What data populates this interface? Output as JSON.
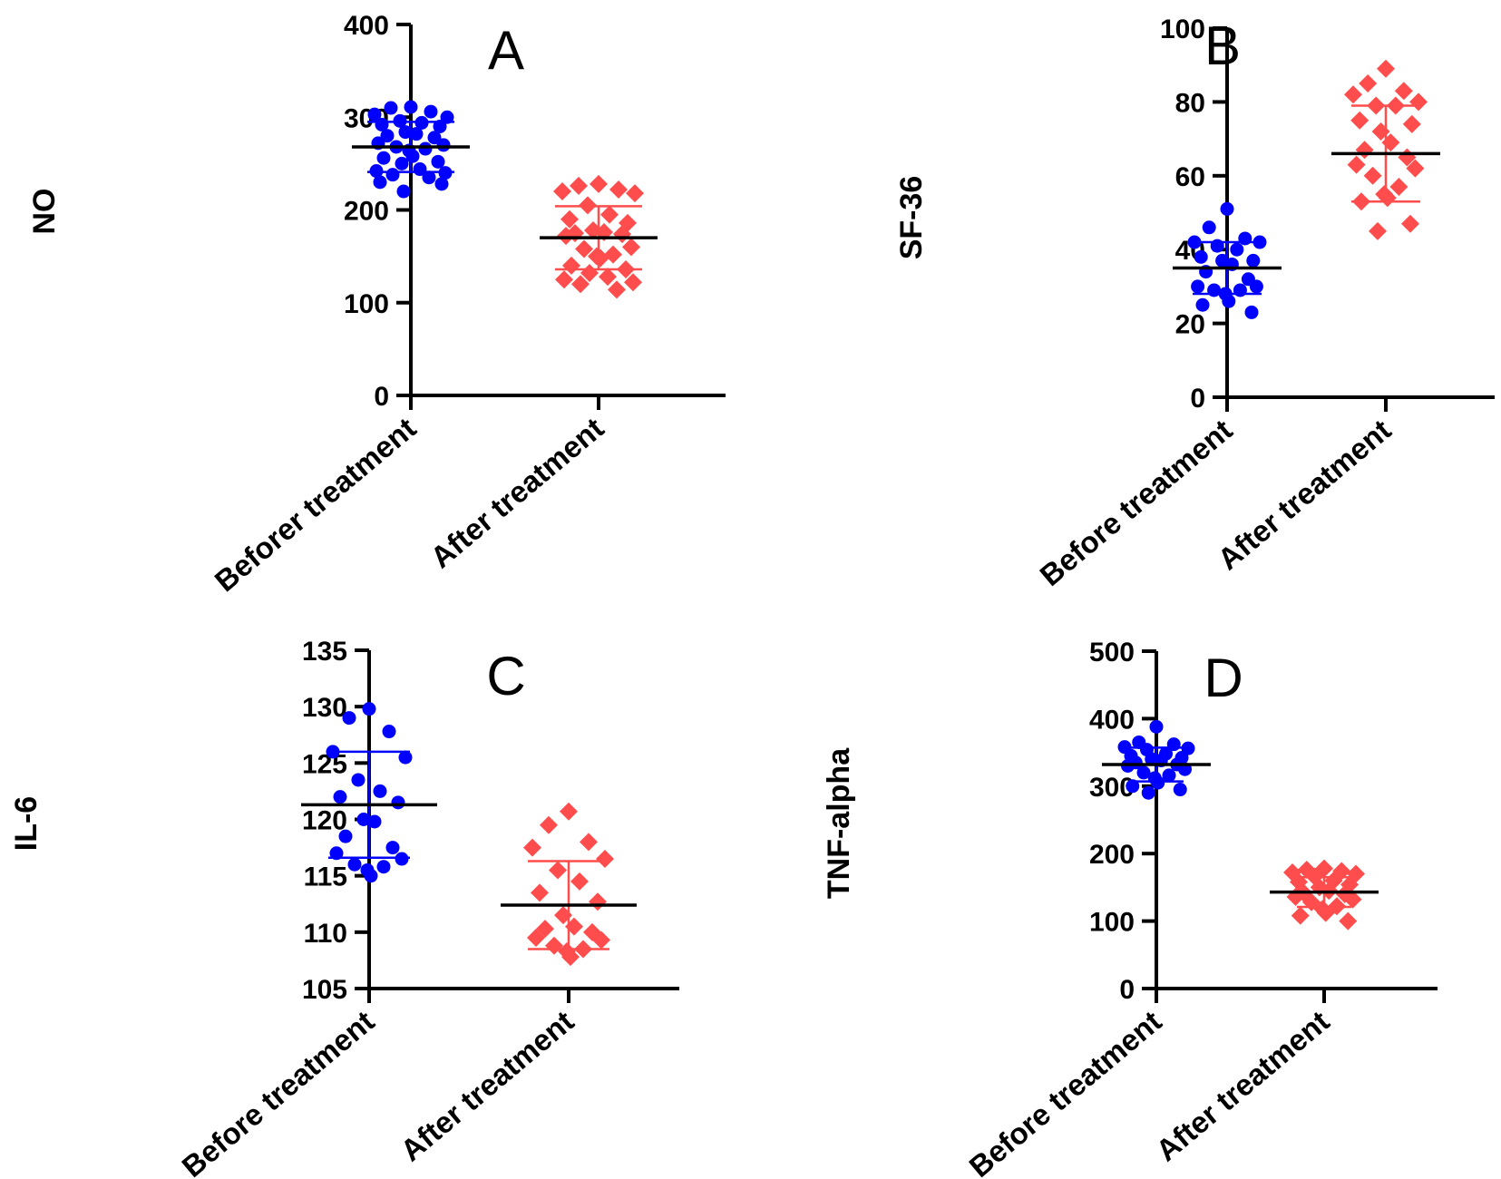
{
  "chart_data": [
    {
      "type": "scatter",
      "panel": "A",
      "ylabel": "NO",
      "ylim": [
        0,
        400
      ],
      "yticks": [
        "0",
        "100",
        "200",
        "300",
        "400"
      ],
      "categories": [
        "Beforer treatment",
        "After treatment"
      ],
      "series": [
        {
          "name": "Beforer treatment",
          "color": "#0000ff",
          "marker": "circle",
          "mean": 268,
          "sd": 27,
          "values": [
            311,
            310,
            306,
            303,
            300,
            296,
            294,
            292,
            290,
            284,
            282,
            280,
            278,
            272,
            270,
            268,
            266,
            264,
            258,
            256,
            252,
            250,
            244,
            242,
            240,
            238,
            235,
            230,
            228,
            220
          ]
        },
        {
          "name": "After treatment",
          "color": "#ff4d4d",
          "marker": "diamond",
          "mean": 170,
          "sd": 34,
          "values": [
            228,
            226,
            222,
            220,
            218,
            205,
            195,
            190,
            186,
            178,
            176,
            175,
            174,
            172,
            160,
            158,
            152,
            150,
            148,
            140,
            136,
            132,
            128,
            125,
            122,
            120,
            114
          ]
        }
      ]
    },
    {
      "type": "scatter",
      "panel": "B",
      "ylabel": "SF-36",
      "ylim": [
        0,
        100
      ],
      "yticks": [
        "0",
        "20",
        "40",
        "60",
        "80",
        "100"
      ],
      "categories": [
        "Before treatment",
        "After treatment"
      ],
      "series": [
        {
          "name": "Before treatment",
          "color": "#0000ff",
          "marker": "circle",
          "mean": 35,
          "sd": 7,
          "values": [
            51,
            46,
            43,
            42,
            42,
            41,
            40,
            38,
            37,
            37,
            36,
            34,
            32,
            30,
            30,
            29,
            29,
            28,
            26,
            25,
            23
          ]
        },
        {
          "name": "After treatment",
          "color": "#ff4d4d",
          "marker": "diamond",
          "mean": 66,
          "sd": 13,
          "values": [
            89,
            85,
            83,
            82,
            80,
            79,
            79,
            75,
            74,
            72,
            69,
            67,
            65,
            63,
            62,
            60,
            57,
            55,
            54,
            53,
            47,
            45
          ]
        }
      ]
    },
    {
      "type": "scatter",
      "panel": "C",
      "ylabel": "IL-6",
      "ylim": [
        105,
        135
      ],
      "yticks": [
        "105",
        "110",
        "115",
        "120",
        "125",
        "130",
        "135"
      ],
      "categories": [
        "Before treatment",
        "After treatment"
      ],
      "series": [
        {
          "name": "Before treatment",
          "color": "#0000ff",
          "marker": "circle",
          "mean": 121.3,
          "sd": 4.7,
          "values": [
            129.8,
            129.0,
            127.8,
            126.0,
            125.5,
            123.5,
            122.5,
            122.0,
            121.5,
            120.0,
            119.8,
            118.5,
            117.5,
            117.0,
            116.5,
            116.0,
            115.8,
            115.5,
            115.0
          ]
        },
        {
          "name": "After treatment",
          "color": "#ff4d4d",
          "marker": "diamond",
          "mean": 112.4,
          "sd": 3.9,
          "values": [
            120.7,
            119.5,
            118.0,
            117.5,
            116.5,
            115.5,
            114.5,
            113.5,
            112.7,
            111.5,
            110.5,
            110.3,
            110.0,
            109.5,
            109.3,
            108.8,
            108.5,
            108.3,
            107.8
          ]
        }
      ]
    },
    {
      "type": "scatter",
      "panel": "D",
      "ylabel": "TNF-alpha",
      "ylim": [
        0,
        500
      ],
      "yticks": [
        "0",
        "100",
        "200",
        "300",
        "400",
        "500"
      ],
      "categories": [
        "Before treatment",
        "After treatment"
      ],
      "series": [
        {
          "name": "Before treatment",
          "color": "#0000ff",
          "marker": "circle",
          "mean": 332,
          "sd": 25,
          "values": [
            388,
            365,
            362,
            358,
            356,
            354,
            348,
            345,
            342,
            340,
            338,
            335,
            332,
            330,
            325,
            320,
            316,
            312,
            305,
            300,
            295,
            290
          ]
        },
        {
          "name": "After treatment",
          "color": "#ff4d4d",
          "marker": "diamond",
          "mean": 143,
          "sd": 22,
          "values": [
            178,
            176,
            174,
            172,
            170,
            166,
            160,
            158,
            154,
            150,
            145,
            142,
            140,
            136,
            132,
            128,
            122,
            118,
            112,
            108,
            100
          ]
        }
      ]
    }
  ]
}
